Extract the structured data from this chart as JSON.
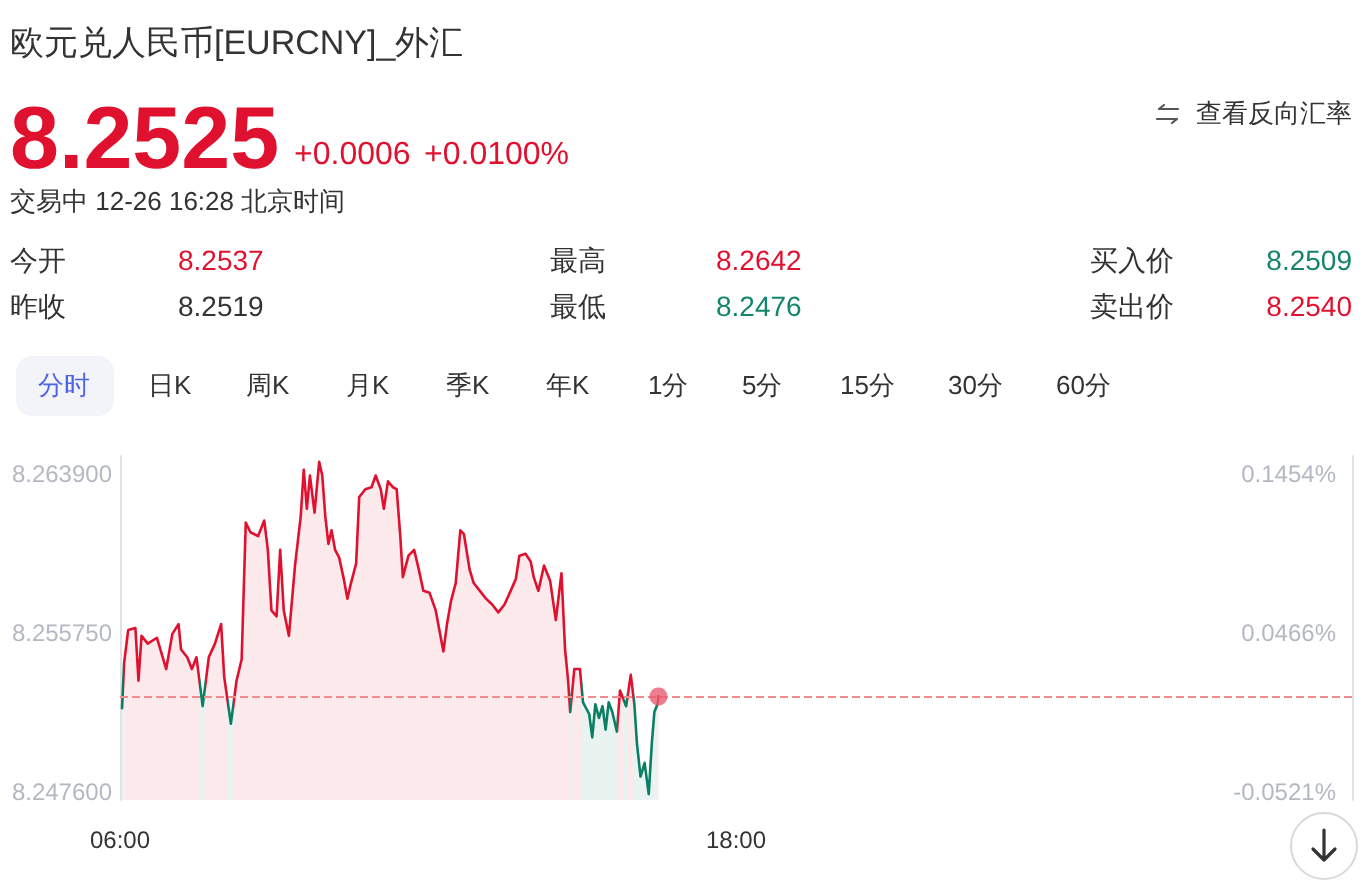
{
  "chart_data": {
    "type": "area",
    "title": "欧元兑人民币[EURCNY]_外汇",
    "annotations": [
      "8.2525",
      "+0.0006",
      "+0.0100%",
      "交易中 12-26 16:28 北京时间",
      "查看反向汇率",
      "今开",
      "8.2537",
      "最高",
      "8.2642",
      "买入价",
      "8.2509",
      "昨收",
      "8.2519",
      "最低",
      "8.2476",
      "卖出价",
      "8.2540",
      "分时",
      "日K",
      "周K",
      "月K",
      "季K",
      "年K",
      "1分",
      "5分",
      "15分",
      "30分",
      "60分"
    ],
    "x": [
      6.04,
      6.08,
      6.16,
      6.3,
      6.36,
      6.42,
      6.54,
      6.72,
      6.9,
      7.02,
      7.14,
      7.19,
      7.31,
      7.4,
      7.49,
      7.61,
      7.73,
      7.85,
      7.97,
      8.03,
      8.16,
      8.27,
      8.37,
      8.45,
      8.54,
      8.69,
      8.81,
      8.88,
      8.95,
      9.05,
      9.12,
      9.19,
      9.29,
      9.41,
      9.52,
      9.58,
      9.64,
      9.7,
      9.79,
      9.88,
      9.94,
      10.0,
      10.06,
      10.12,
      10.19,
      10.27,
      10.36,
      10.43,
      10.5,
      10.6,
      10.66,
      10.78,
      10.9,
      10.98,
      11.08,
      11.14,
      11.22,
      11.32,
      11.39,
      11.46,
      11.51,
      11.62,
      11.73,
      11.82,
      11.91,
      12.03,
      12.15,
      12.3,
      12.37,
      12.45,
      12.54,
      12.63,
      12.7,
      12.81,
      12.89,
      13.01,
      13.13,
      13.25,
      13.37,
      13.49,
      13.61,
      13.71,
      13.78,
      13.9,
      14.0,
      14.06,
      14.15,
      14.26,
      14.38,
      14.49,
      14.6,
      14.67,
      14.73,
      14.77,
      14.85,
      14.96,
      15.02,
      15.14,
      15.2,
      15.26,
      15.33,
      15.4,
      15.46,
      15.52,
      15.59,
      15.68,
      15.74,
      15.86,
      15.95,
      16.02,
      16.07,
      16.14,
      16.22,
      16.3,
      16.36,
      16.41,
      16.47,
      16.49
    ],
    "series": [
      {
        "values": [
          8.2519,
          8.2542,
          8.2559,
          8.256,
          8.2533,
          8.2556,
          8.2552,
          8.2555,
          8.2539,
          8.2557,
          8.2562,
          8.2549,
          8.2545,
          8.2539,
          8.2545,
          8.252,
          8.2545,
          8.2552,
          8.2562,
          8.2535,
          8.2511,
          8.2533,
          8.2544,
          8.2614,
          8.2609,
          8.2607,
          8.2615,
          8.26,
          8.2569,
          8.2566,
          8.26,
          8.2569,
          8.2556,
          8.2592,
          8.2617,
          8.2641,
          8.2621,
          8.2638,
          8.2619,
          8.2645,
          8.2638,
          8.2617,
          8.2603,
          8.261,
          8.26,
          8.2596,
          8.2585,
          8.2575,
          8.2583,
          8.2593,
          8.2627,
          8.2631,
          8.2632,
          8.2638,
          8.2631,
          8.2621,
          8.2635,
          8.2632,
          8.2631,
          8.2607,
          8.2586,
          8.2597,
          8.26,
          8.259,
          8.2579,
          8.2578,
          8.2569,
          8.2548,
          8.2562,
          8.2574,
          8.2583,
          8.261,
          8.2608,
          8.259,
          8.2583,
          8.2579,
          8.2575,
          8.2572,
          8.2568,
          8.2572,
          8.2579,
          8.2585,
          8.2597,
          8.2598,
          8.2594,
          8.2586,
          8.2579,
          8.2592,
          8.2584,
          8.2564,
          8.2588,
          8.2549,
          8.2533,
          8.2517,
          8.2539,
          8.2539,
          8.2522,
          8.2516,
          8.2504,
          8.2521,
          8.2514,
          8.252,
          8.2508,
          8.2522,
          8.2517,
          8.2507,
          8.2528,
          8.252,
          8.2536,
          8.2521,
          8.2501,
          8.2484,
          8.2491,
          8.2475,
          8.2501,
          8.2517,
          8.2521,
          8.2525
        ],
        "colors": [
          "#0b7f63",
          "#e0102f",
          "#e0102f",
          "#e0102f",
          "#e0102f",
          "#e0102f",
          "#e0102f",
          "#e0102f",
          "#e0102f",
          "#e0102f",
          "#e0102f",
          "#e0102f",
          "#e0102f",
          "#e0102f",
          "#e0102f",
          "#0b7f63",
          "#e0102f",
          "#e0102f",
          "#e0102f",
          "#e0102f",
          "#0b7f63",
          "#e0102f",
          "#e0102f",
          "#e0102f",
          "#e0102f",
          "#e0102f",
          "#e0102f",
          "#e0102f",
          "#e0102f",
          "#e0102f",
          "#e0102f",
          "#e0102f",
          "#e0102f",
          "#e0102f",
          "#e0102f",
          "#e0102f",
          "#e0102f",
          "#e0102f",
          "#e0102f",
          "#e0102f",
          "#e0102f",
          "#e0102f",
          "#e0102f",
          "#e0102f",
          "#e0102f",
          "#e0102f",
          "#e0102f",
          "#e0102f",
          "#e0102f",
          "#e0102f",
          "#e0102f",
          "#e0102f",
          "#e0102f",
          "#e0102f",
          "#e0102f",
          "#e0102f",
          "#e0102f",
          "#e0102f",
          "#e0102f",
          "#e0102f",
          "#e0102f",
          "#e0102f",
          "#e0102f",
          "#e0102f",
          "#e0102f",
          "#e0102f",
          "#e0102f",
          "#e0102f",
          "#e0102f",
          "#e0102f",
          "#e0102f",
          "#e0102f",
          "#e0102f",
          "#e0102f",
          "#e0102f",
          "#e0102f",
          "#e0102f",
          "#e0102f",
          "#e0102f",
          "#e0102f",
          "#e0102f",
          "#e0102f",
          "#e0102f",
          "#e0102f",
          "#e0102f",
          "#e0102f",
          "#e0102f",
          "#e0102f",
          "#e0102f",
          "#e0102f",
          "#e0102f",
          "#e0102f",
          "#e0102f",
          "#0b7f63",
          "#e0102f",
          "#e0102f",
          "#0b7f63",
          "#0b7f63",
          "#0b7f63",
          "#0b7f63",
          "#0b7f63",
          "#0b7f63",
          "#0b7f63",
          "#0b7f63",
          "#0b7f63",
          "#0b7f63",
          "#e0102f",
          "#0b7f63",
          "#e0102f",
          "#0b7f63",
          "#0b7f63",
          "#0b7f63",
          "#0b7f63",
          "#0b7f63",
          "#0b7f63",
          "#0b7f63",
          "#0b7f63",
          "#e0102f"
        ]
      },
      {
        "type": "scatter",
        "x": [
          16.49
        ],
        "values": [
          8.2525
        ],
        "color": "#e65c73",
        "marker": "circle"
      }
    ],
    "xlim": [
      6,
      30
    ],
    "xticks": [
      {
        "value": 6,
        "label": "06:00"
      },
      {
        "value": 18,
        "label": "18:00"
      }
    ],
    "ylim": [
      8.2472,
      8.2648
    ],
    "yticks": [
      {
        "value": 8.2476,
        "label": "8.247600"
      },
      {
        "value": 8.25575,
        "label": "8.255750"
      },
      {
        "value": 8.2639,
        "label": "8.263900"
      }
    ],
    "y2lim": [
      -0.0569,
      0.1563
    ],
    "y2ticks": [
      {
        "value": -0.0521,
        "label": "-0.0521%"
      },
      {
        "value": 0.0466,
        "label": "0.0466%"
      },
      {
        "value": 0.1454,
        "label": "0.1454%"
      }
    ],
    "ref_lines": [
      {
        "axis": "y",
        "value": 8.2525,
        "color": "#f28b8b",
        "line_style": "dashed"
      }
    ],
    "marker": "none",
    "grid": false
  }
}
